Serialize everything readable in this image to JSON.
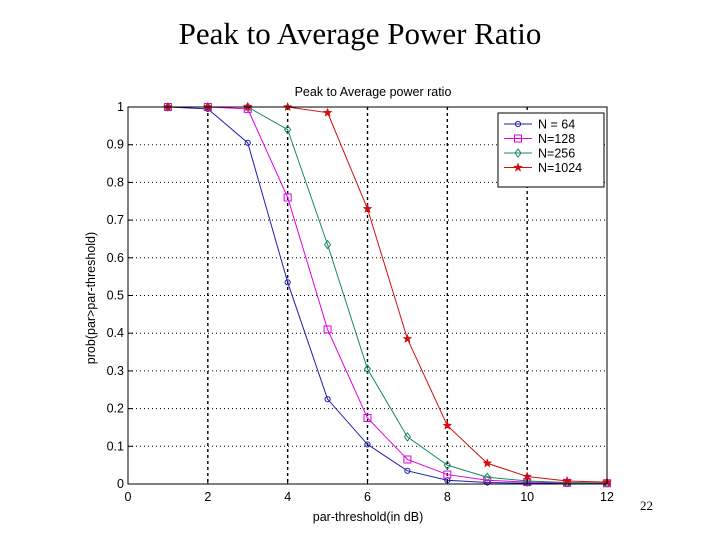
{
  "slide": {
    "title": "Peak to Average Power Ratio",
    "page_number": "22"
  },
  "chart_data": {
    "type": "line",
    "title": "Peak to Average power ratio",
    "xlabel": "par-threshold(in dB)",
    "ylabel": "prob(par>par-threshold)",
    "xlim": [
      0,
      12
    ],
    "ylim": [
      0,
      1
    ],
    "xticks": [
      0,
      2,
      4,
      6,
      8,
      10,
      12
    ],
    "yticks": [
      0,
      0.1,
      0.2,
      0.3,
      0.4,
      0.5,
      0.6,
      0.7,
      0.8,
      0.9,
      1
    ],
    "ytick_labels": [
      "0",
      "0.1",
      "0.2",
      "0.3",
      "0.4",
      "0.5",
      "0.6",
      "0.7",
      "0.8",
      "0.9",
      "1"
    ],
    "grid": true,
    "legend_position": "top-right",
    "series": [
      {
        "name": "N = 64",
        "color": "#1f1fb0",
        "marker": "circle",
        "x": [
          1,
          2,
          3,
          4,
          5,
          6,
          7,
          8,
          9,
          10,
          11,
          12
        ],
        "y": [
          1,
          0.995,
          0.905,
          0.535,
          0.225,
          0.105,
          0.035,
          0.01,
          0.004,
          0.002,
          0.001,
          0.0
        ]
      },
      {
        "name": "N=128",
        "color": "#e000e0",
        "marker": "square",
        "x": [
          1,
          2,
          3,
          4,
          5,
          6,
          7,
          8,
          9,
          10,
          11,
          12
        ],
        "y": [
          1,
          1,
          0.995,
          0.76,
          0.41,
          0.175,
          0.065,
          0.025,
          0.01,
          0.005,
          0.003,
          0.002
        ]
      },
      {
        "name": "N=256",
        "color": "#1a8a5a",
        "marker": "diamond",
        "x": [
          1,
          2,
          3,
          4,
          5,
          6,
          7,
          8,
          9,
          10,
          11,
          12
        ],
        "y": [
          1,
          1,
          1,
          0.94,
          0.635,
          0.305,
          0.125,
          0.05,
          0.018,
          0.008,
          0.004,
          0.003
        ]
      },
      {
        "name": "N=1024",
        "color": "#d01010",
        "marker": "star",
        "x": [
          1,
          2,
          3,
          4,
          5,
          6,
          7,
          8,
          9,
          10,
          11,
          12
        ],
        "y": [
          1,
          1,
          1,
          1,
          0.985,
          0.73,
          0.385,
          0.155,
          0.055,
          0.02,
          0.008,
          0.005
        ]
      }
    ]
  }
}
